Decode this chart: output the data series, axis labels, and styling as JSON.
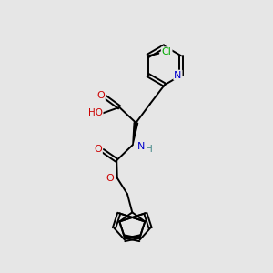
{
  "background_color": "#e6e6e6",
  "atom_colors": {
    "C": "#000000",
    "N": "#0000cc",
    "O": "#cc0000",
    "Cl": "#00aa00",
    "H": "#448888"
  },
  "bond_color": "#000000",
  "bond_width": 1.4,
  "figsize": [
    3.0,
    3.0
  ],
  "dpi": 100,
  "xlim": [
    0,
    10
  ],
  "ylim": [
    0,
    10
  ]
}
